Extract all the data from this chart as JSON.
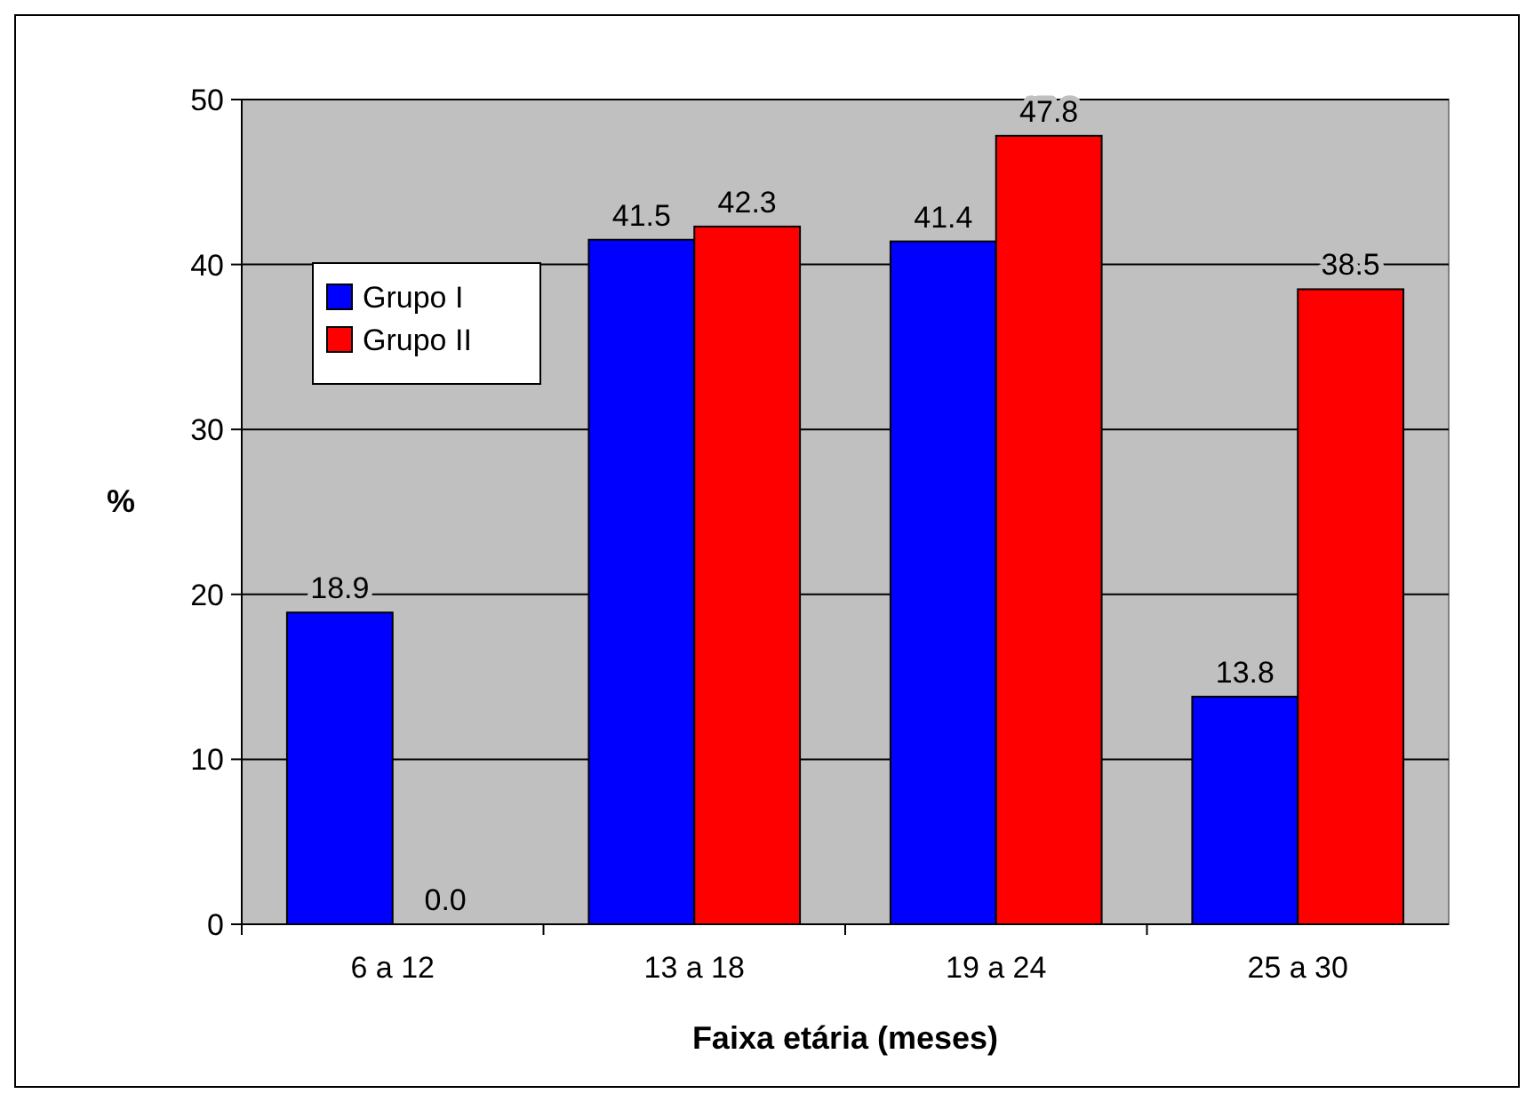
{
  "chart_data": {
    "type": "bar",
    "xlabel": "Faixa etária (meses)",
    "ylabel": "%",
    "categories": [
      "6 a 12",
      "13 a 18",
      "19 a 24",
      "25 a 30"
    ],
    "series": [
      {
        "name": "Grupo I",
        "color": "#0000ff",
        "values": [
          18.9,
          41.5,
          41.4,
          13.8
        ],
        "value_labels": [
          "18.9",
          "41.5",
          "41.4",
          "13.8"
        ]
      },
      {
        "name": "Grupo II",
        "color": "#ff0000",
        "values": [
          0.0,
          42.3,
          47.8,
          38.5
        ],
        "value_labels": [
          "0.0",
          "42.3",
          "47.8",
          "38.5"
        ]
      }
    ],
    "ylim": [
      0,
      50
    ],
    "yticks": [
      0,
      10,
      20,
      30,
      40,
      50
    ],
    "grid": "y",
    "legend": "top left"
  }
}
